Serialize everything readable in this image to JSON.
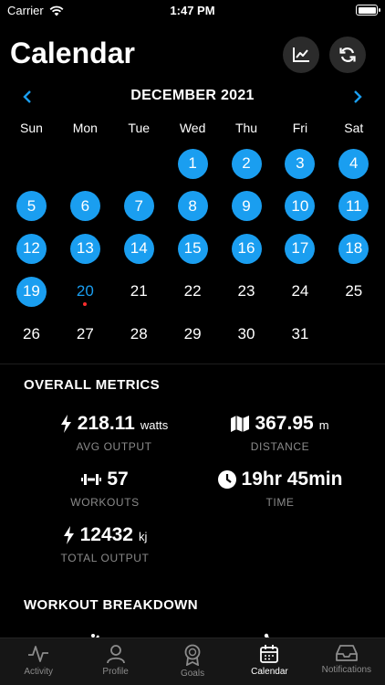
{
  "status": {
    "carrier": "Carrier",
    "time": "1:47 PM",
    "battery_level": 1.0
  },
  "header": {
    "title": "Calendar",
    "chart_button_icon": "line-chart-icon",
    "refresh_button_icon": "refresh-icon"
  },
  "calendar": {
    "month_label": "DECEMBER 2021",
    "weekdays": [
      "Sun",
      "Mon",
      "Tue",
      "Wed",
      "Thu",
      "Fri",
      "Sat"
    ],
    "days": [
      {
        "label": ""
      },
      {
        "label": ""
      },
      {
        "label": ""
      },
      {
        "label": "1",
        "done": true
      },
      {
        "label": "2",
        "done": true
      },
      {
        "label": "3",
        "done": true
      },
      {
        "label": "4",
        "done": true
      },
      {
        "label": "5",
        "done": true
      },
      {
        "label": "6",
        "done": true
      },
      {
        "label": "7",
        "done": true
      },
      {
        "label": "8",
        "done": true
      },
      {
        "label": "9",
        "done": true
      },
      {
        "label": "10",
        "done": true
      },
      {
        "label": "11",
        "done": true
      },
      {
        "label": "12",
        "done": true
      },
      {
        "label": "13",
        "done": true
      },
      {
        "label": "14",
        "done": true
      },
      {
        "label": "15",
        "done": true
      },
      {
        "label": "16",
        "done": true
      },
      {
        "label": "17",
        "done": true
      },
      {
        "label": "18",
        "done": true
      },
      {
        "label": "19",
        "done": true
      },
      {
        "label": "20",
        "today": true
      },
      {
        "label": "21"
      },
      {
        "label": "22"
      },
      {
        "label": "23"
      },
      {
        "label": "24"
      },
      {
        "label": "25"
      },
      {
        "label": "26"
      },
      {
        "label": "27"
      },
      {
        "label": "28"
      },
      {
        "label": "29"
      },
      {
        "label": "30"
      },
      {
        "label": "31"
      }
    ],
    "accent_color": "#1a9ef0",
    "today_dot_color": "#ff2d2d"
  },
  "overall_metrics": {
    "title": "OVERALL METRICS",
    "avg_output": {
      "value": "218.11",
      "unit": "watts",
      "caption": "AVG OUTPUT",
      "icon": "lightning-icon"
    },
    "distance": {
      "value": "367.95",
      "unit": "m",
      "caption": "DISTANCE",
      "icon": "map-icon"
    },
    "workouts": {
      "value": "57",
      "caption": "WORKOUTS",
      "icon": "dumbbell-icon"
    },
    "time": {
      "value": "19hr 45min",
      "caption": "TIME",
      "icon": "clock-icon"
    },
    "total_output": {
      "value": "12432",
      "unit": "kj",
      "caption": "TOTAL OUTPUT",
      "icon": "lightning-icon"
    }
  },
  "workout_breakdown": {
    "title": "WORKOUT BREAKDOWN"
  },
  "tabs": [
    {
      "label": "Activity",
      "icon": "activity-icon"
    },
    {
      "label": "Profile",
      "icon": "person-icon"
    },
    {
      "label": "Goals",
      "icon": "award-icon"
    },
    {
      "label": "Calendar",
      "icon": "calendar-icon",
      "active": true
    },
    {
      "label": "Notifications",
      "icon": "inbox-icon"
    }
  ]
}
